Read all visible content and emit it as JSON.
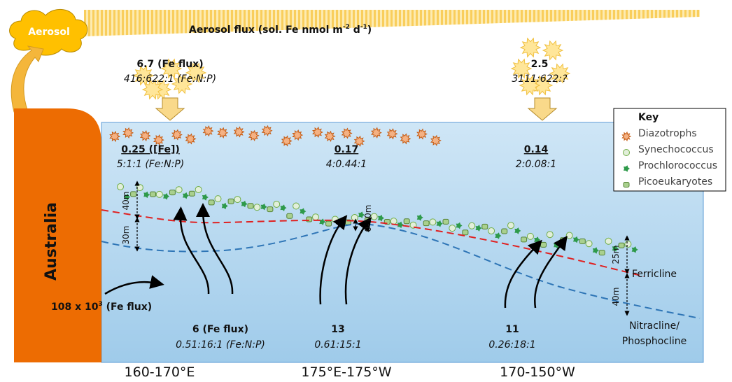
{
  "aerosol": {
    "label": "Aerosol",
    "flux_label": [
      "Aerosol flux (sol. Fe nmol m",
      "-2",
      " d",
      "-1",
      ")"
    ]
  },
  "surface_inputs": [
    {
      "value": "6.7 (Fe flux)",
      "ratio": "416:622:1 (Fe:N:P)"
    },
    {
      "value": "2.5",
      "ratio": "3111:622:?"
    }
  ],
  "surface_iron": [
    {
      "value": "0.25 ([Fe])",
      "ratio": "5:1:1 (Fe:N:P)"
    },
    {
      "value": "0.17",
      "ratio": "4:0.44:1"
    },
    {
      "value": "0.14",
      "ratio": "2:0.08:1"
    }
  ],
  "key": {
    "title": "Key",
    "items": [
      "Diazotrophs",
      "Synechococcus",
      "Prochlorococcus",
      "Picoeukaryotes"
    ]
  },
  "land": "Australia",
  "lateral_flux": [
    "108 x 10",
    "3",
    " (Fe flux)"
  ],
  "upwelling": [
    {
      "value": "6 (Fe flux)",
      "ratio": "0.51:16:1 (Fe:N:P)"
    },
    {
      "value": "13",
      "ratio": "0.61:15:1"
    },
    {
      "value": "11",
      "ratio": "0.26:18:1"
    }
  ],
  "depths": [
    "40m",
    "30m",
    "0-10m",
    "25m",
    "40m"
  ],
  "clines": {
    "ferricline": "Ferricline",
    "nitracline": [
      "Nitracline/",
      "Phosphocline"
    ]
  },
  "regions": [
    "160-170°E",
    "175°E-175°W",
    "170-150°W"
  ]
}
